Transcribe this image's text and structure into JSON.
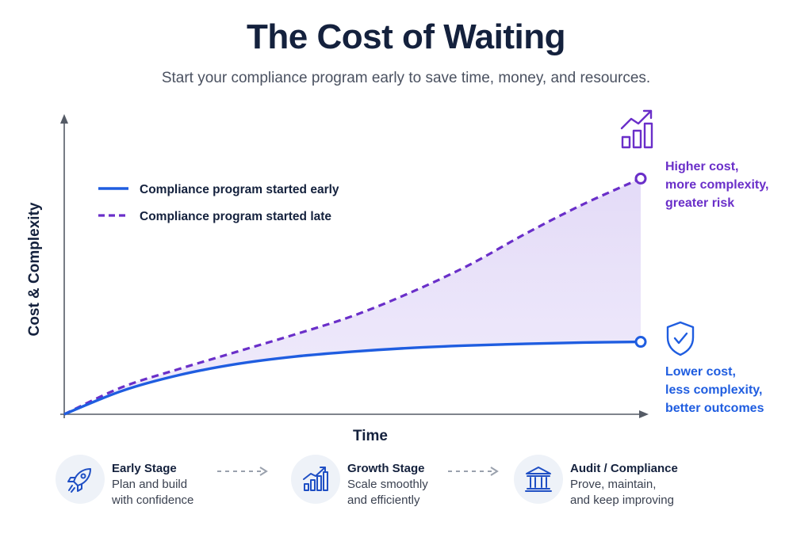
{
  "header": {
    "title": "The Cost of Waiting",
    "subtitle": "Start your compliance program early to save time, money, and resources."
  },
  "annotations": {
    "late": [
      "Higher cost,",
      "more complexity,",
      "greater risk"
    ],
    "early": [
      "Lower cost,",
      "less complexity,",
      "better outcomes"
    ]
  },
  "stages": [
    {
      "title": "Early Stage",
      "desc": [
        "Plan and build",
        "with confidence"
      ],
      "icon": "rocket-icon"
    },
    {
      "title": "Growth Stage",
      "desc": [
        "Scale smoothly",
        "and efficiently"
      ],
      "icon": "growth-chart-icon"
    },
    {
      "title": "Audit / Compliance",
      "desc": [
        "Prove, maintain,",
        "and keep improving"
      ],
      "icon": "bank-building-icon"
    }
  ],
  "colors": {
    "early": "#1f5de0",
    "late": "#6a2fc9",
    "fill": "#e9e2f8",
    "axis": "#555b66",
    "text": "#14213d"
  },
  "chart_data": {
    "type": "line",
    "xlabel": "Time",
    "ylabel": "Cost & Complexity",
    "xlim": [
      0,
      10
    ],
    "ylim": [
      0,
      10
    ],
    "grid": false,
    "legend_position": "top-left",
    "series": [
      {
        "name": "Compliance program started early",
        "style": "solid",
        "x": [
          0,
          1,
          2,
          3,
          4,
          5,
          6,
          7,
          8,
          9,
          10
        ],
        "y": [
          0,
          0.95,
          1.6,
          2.05,
          2.35,
          2.55,
          2.7,
          2.8,
          2.87,
          2.92,
          2.95
        ]
      },
      {
        "name": "Compliance program started late",
        "style": "dashed",
        "x": [
          0,
          1,
          2,
          3,
          4,
          5,
          6,
          7,
          8,
          9,
          10
        ],
        "y": [
          0,
          1.1,
          1.85,
          2.55,
          3.25,
          4.0,
          4.95,
          6.05,
          7.35,
          8.55,
          9.6
        ]
      }
    ]
  }
}
